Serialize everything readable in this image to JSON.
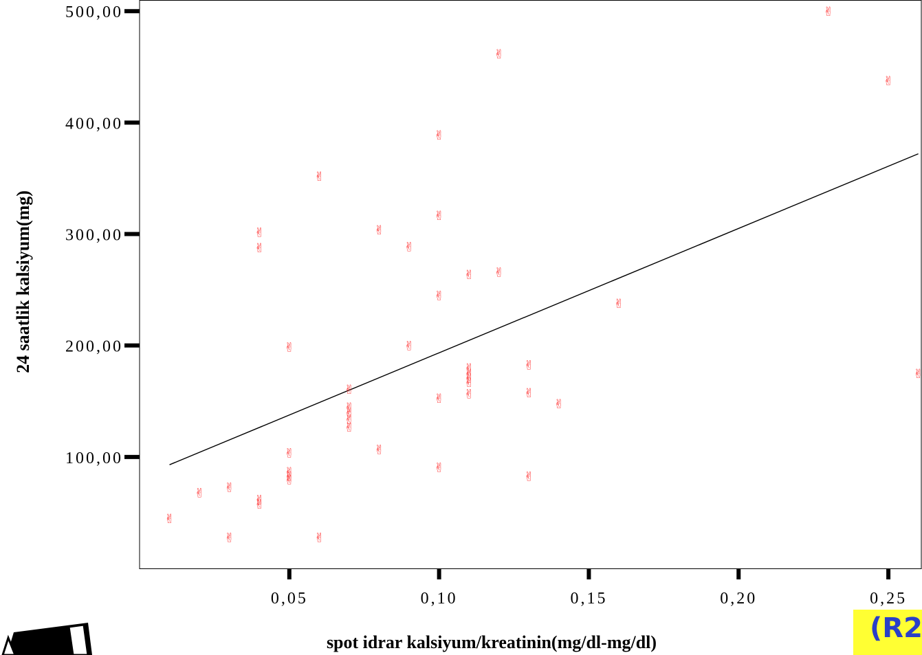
{
  "chart_data": {
    "type": "scatter",
    "xlabel": "spot idrar kalsiyum/kreatinin(mg/dl-mg/dl)",
    "ylabel": "24 saatlik kalsiyum(mg)",
    "x_ticks": [
      {
        "value": 0.05,
        "label": "0,05"
      },
      {
        "value": 0.1,
        "label": "0,10"
      },
      {
        "value": 0.15,
        "label": "0,15"
      },
      {
        "value": 0.2,
        "label": "0,20"
      },
      {
        "value": 0.25,
        "label": "0,25"
      }
    ],
    "y_ticks": [
      {
        "value": 100,
        "label": "100,00"
      },
      {
        "value": 200,
        "label": "200,00"
      },
      {
        "value": 300,
        "label": "300,00"
      },
      {
        "value": 400,
        "label": "400,00"
      },
      {
        "value": 500,
        "label": "500,00"
      }
    ],
    "xlim": [
      0.0,
      0.261
    ],
    "ylim": [
      0,
      510
    ],
    "grid": false,
    "marker_symbol": "✌",
    "marker_color": "#ff3b3b",
    "line_color": "#000000",
    "fit_line": {
      "x": [
        0.01,
        0.26
      ],
      "y": [
        93,
        372
      ]
    },
    "points": [
      {
        "x": 0.01,
        "y": 45
      },
      {
        "x": 0.02,
        "y": 68
      },
      {
        "x": 0.03,
        "y": 73
      },
      {
        "x": 0.03,
        "y": 28
      },
      {
        "x": 0.04,
        "y": 302
      },
      {
        "x": 0.04,
        "y": 288
      },
      {
        "x": 0.04,
        "y": 62
      },
      {
        "x": 0.04,
        "y": 58
      },
      {
        "x": 0.05,
        "y": 199
      },
      {
        "x": 0.05,
        "y": 104
      },
      {
        "x": 0.05,
        "y": 87
      },
      {
        "x": 0.05,
        "y": 83
      },
      {
        "x": 0.05,
        "y": 80
      },
      {
        "x": 0.06,
        "y": 352
      },
      {
        "x": 0.06,
        "y": 28
      },
      {
        "x": 0.07,
        "y": 161
      },
      {
        "x": 0.07,
        "y": 145
      },
      {
        "x": 0.07,
        "y": 140
      },
      {
        "x": 0.07,
        "y": 134
      },
      {
        "x": 0.07,
        "y": 127
      },
      {
        "x": 0.08,
        "y": 304
      },
      {
        "x": 0.08,
        "y": 107
      },
      {
        "x": 0.09,
        "y": 289
      },
      {
        "x": 0.09,
        "y": 200
      },
      {
        "x": 0.1,
        "y": 389
      },
      {
        "x": 0.1,
        "y": 317
      },
      {
        "x": 0.1,
        "y": 245
      },
      {
        "x": 0.1,
        "y": 153
      },
      {
        "x": 0.1,
        "y": 91
      },
      {
        "x": 0.11,
        "y": 264
      },
      {
        "x": 0.11,
        "y": 180
      },
      {
        "x": 0.11,
        "y": 175
      },
      {
        "x": 0.11,
        "y": 171
      },
      {
        "x": 0.11,
        "y": 167
      },
      {
        "x": 0.11,
        "y": 157
      },
      {
        "x": 0.12,
        "y": 462
      },
      {
        "x": 0.12,
        "y": 266
      },
      {
        "x": 0.13,
        "y": 183
      },
      {
        "x": 0.13,
        "y": 158
      },
      {
        "x": 0.13,
        "y": 83
      },
      {
        "x": 0.14,
        "y": 148
      },
      {
        "x": 0.16,
        "y": 238
      },
      {
        "x": 0.23,
        "y": 500
      },
      {
        "x": 0.25,
        "y": 438
      },
      {
        "x": 0.26,
        "y": 175
      }
    ]
  },
  "badge": {
    "text": "(R2",
    "background": "#ffff33",
    "color": "#2a3fc8"
  }
}
